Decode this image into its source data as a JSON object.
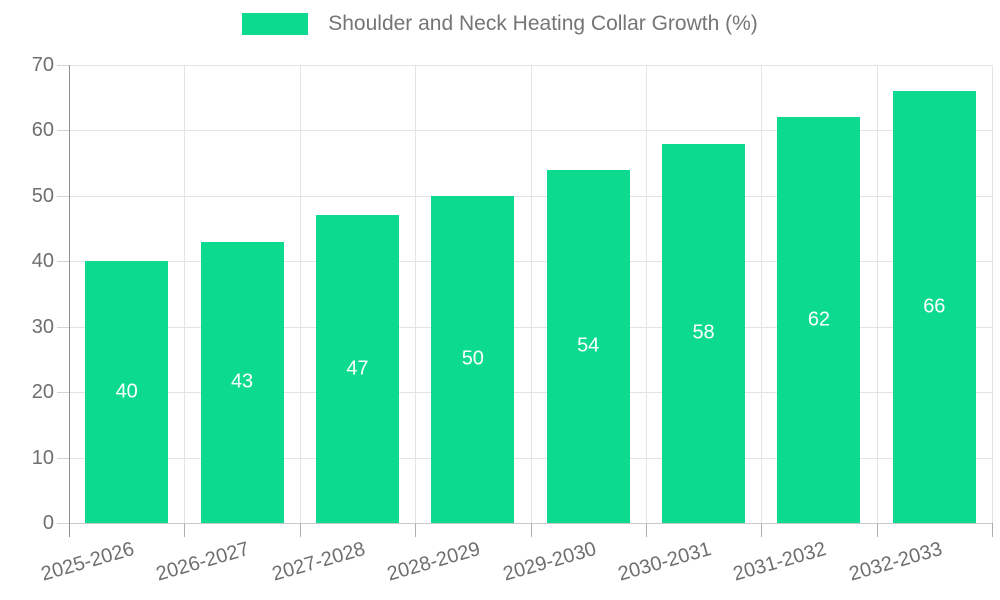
{
  "legend": {
    "label": "Shoulder and Neck Heating Collar Growth (%)"
  },
  "colors": {
    "bar": "#0cdb8f",
    "grid": "#e4e4e4",
    "y_axis_line": "#8f8f8f",
    "x_axis_line": "#c9c9c9",
    "tick_mark_y": "#d4d4d4",
    "tick_mark_x": "#adadad",
    "tick_text": "#6f6f6f",
    "legend_text": "#757575",
    "bar_label_text": "#ffffff",
    "background": "#ffffff"
  },
  "chart_data": {
    "type": "bar",
    "title": "Shoulder and Neck Heating Collar Growth (%)",
    "series": [
      {
        "name": "Shoulder and Neck Heating Collar Growth (%)",
        "values": [
          40,
          43,
          47,
          50,
          54,
          58,
          62,
          66
        ]
      }
    ],
    "categories": [
      "2025-2026",
      "2026-2027",
      "2027-2028",
      "2028-2029",
      "2029-2030",
      "2030-2031",
      "2031-2032",
      "2032-2033"
    ],
    "xlabel": "",
    "ylabel": "",
    "ylim": [
      0,
      70
    ],
    "yticks": [
      0,
      10,
      20,
      30,
      40,
      50,
      60,
      70
    ],
    "grid": true,
    "legend_position": "top-center",
    "bar_value_labels": true,
    "x_label_rotation_deg": -16
  }
}
